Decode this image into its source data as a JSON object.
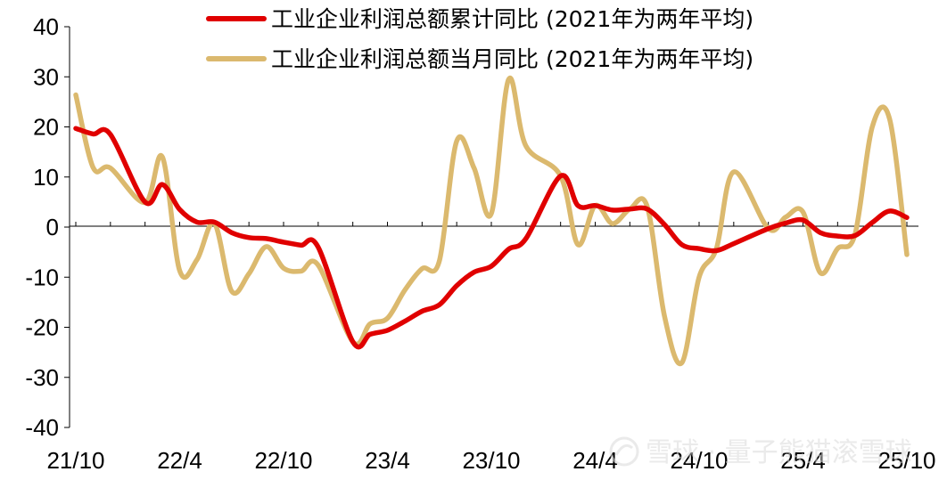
{
  "chart_data": {
    "type": "line",
    "title": "",
    "xlabel": "",
    "ylabel": "",
    "ylim": [
      -40,
      40
    ],
    "yticks": [
      40,
      30,
      20,
      10,
      0,
      -10,
      -20,
      -30,
      -40
    ],
    "x_tick_labels": [
      "21/10",
      "22/4",
      "22/10",
      "23/4",
      "23/10",
      "24/4",
      "24/10",
      "25/4",
      "25/10"
    ],
    "x": [
      "21/10",
      "21/11",
      "21/12",
      "22/1",
      "22/2",
      "22/3",
      "22/4",
      "22/5",
      "22/6",
      "22/7",
      "22/8",
      "22/9",
      "22/10",
      "22/11",
      "22/12",
      "23/1",
      "23/2",
      "23/3",
      "23/4",
      "23/5",
      "23/6",
      "23/7",
      "23/8",
      "23/9",
      "23/10",
      "23/11",
      "23/12",
      "24/1",
      "24/2",
      "24/3",
      "24/4",
      "24/5",
      "24/6",
      "24/7",
      "24/8",
      "24/9",
      "24/10",
      "24/11",
      "24/12",
      "25/1",
      "25/2",
      "25/3",
      "25/4",
      "25/5",
      "25/6",
      "25/7",
      "25/8",
      "25/9",
      "25/10"
    ],
    "grid": false,
    "legend_position": "top",
    "series": [
      {
        "name": "工业企业利润总额累计同比 (2021年为两年平均)",
        "color": "#e00000",
        "values": [
          19.7,
          18.6,
          18.5,
          null,
          5.0,
          8.5,
          3.5,
          1.0,
          1.0,
          -1.1,
          -2.1,
          -2.3,
          -3.0,
          -3.6,
          -4.0,
          null,
          -22.9,
          -21.4,
          -20.6,
          -18.8,
          -16.8,
          -15.5,
          -11.7,
          -9.0,
          -7.8,
          -4.4,
          -2.3,
          null,
          10.2,
          4.3,
          4.3,
          3.4,
          3.6,
          3.6,
          0.5,
          -3.5,
          -4.3,
          -4.7,
          -3.3,
          null,
          -0.3,
          0.8,
          1.4,
          -1.1,
          -1.8,
          -1.7,
          0.9,
          3.2,
          1.9
        ]
      },
      {
        "name": "工业企业利润总额当月同比 (2021年为两年平均)",
        "color": "#dbb96e",
        "values": [
          26.4,
          11.9,
          11.8,
          null,
          4.9,
          14.0,
          -8.7,
          -6.5,
          0.8,
          -12.8,
          -9.3,
          -3.9,
          -8.2,
          -8.8,
          -7.6,
          null,
          -22.9,
          -19.3,
          -18.2,
          -12.6,
          -8.3,
          -6.7,
          17.2,
          11.8,
          2.7,
          29.5,
          16.2,
          null,
          10.2,
          -3.5,
          4.3,
          0.7,
          3.6,
          4.1,
          -17.8,
          -27.1,
          -10.0,
          -4.3,
          11.0,
          null,
          -0.3,
          2.0,
          3.0,
          -9.1,
          -4.3,
          -1.5,
          20.0,
          21.6,
          -5.5
        ]
      }
    ]
  },
  "watermark": "雪球 · 量子熊猫滚雪球"
}
